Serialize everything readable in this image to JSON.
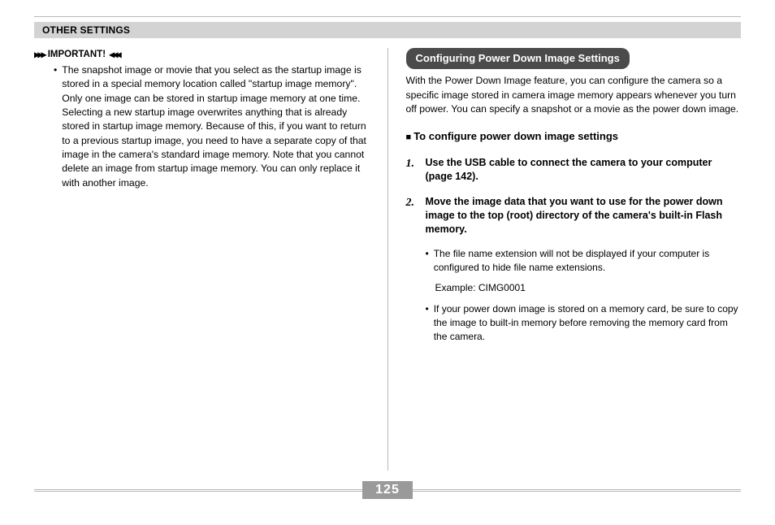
{
  "header": {
    "title": "OTHER SETTINGS"
  },
  "left": {
    "important_label": "IMPORTANT!",
    "bullet": "The snapshot image or movie that you select as the startup image is stored in a special memory location called \"startup image memory\". Only one image can be stored in startup image memory at one time. Selecting a new startup image overwrites anything that is already stored in startup image memory. Because of this, if you want to return to a previous startup image, you need to have a separate copy of that image in the camera's standard image memory. Note that you cannot delete an image from startup image memory. You can only replace it with another image."
  },
  "right": {
    "pill": "Configuring Power Down Image Settings",
    "intro": "With the Power Down Image feature, you can configure the camera so a specific image stored in camera image memory appears whenever you turn off power. You can specify a snapshot or a movie as the power down image.",
    "subheading": "To configure power down image settings",
    "steps": [
      {
        "n": "1.",
        "text": "Use the USB cable to connect the camera to your computer (page 142)."
      },
      {
        "n": "2.",
        "text": "Move the image data that you want to use for the power down image to the top (root) directory of the camera's built-in Flash memory."
      }
    ],
    "sub_bullets": [
      "The file name extension will not be displayed if your computer is configured to hide file name extensions.",
      "If your power down image is stored on a memory card, be sure to copy the image to built-in memory before removing the memory card from the camera."
    ],
    "example": "Example: CIMG0001"
  },
  "footer": {
    "page": "125"
  }
}
